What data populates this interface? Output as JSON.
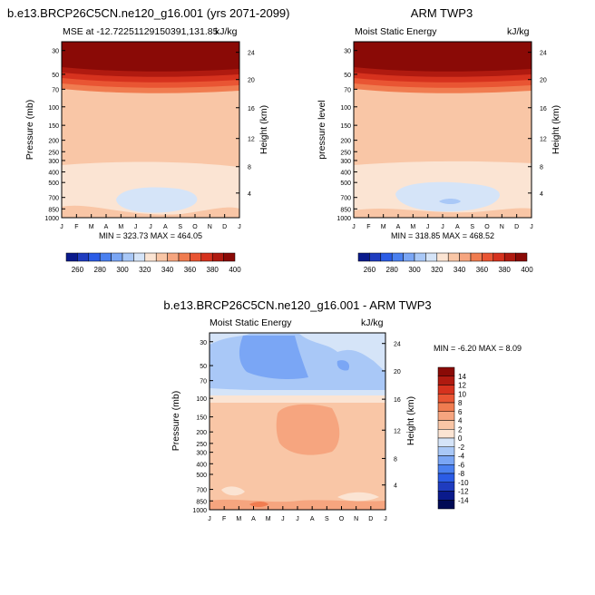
{
  "chart_data": [
    {
      "type": "heatmap",
      "title": "b.e13.BRCP26C5CN.ne120_g16.001 (yrs 2071-2099)",
      "subtitle_left": "MSE at -12.7225112915039​1,131.85",
      "units": "kJ/kg",
      "ylabel": "Pressure (mb)",
      "ylabel_right": "Height (km)",
      "months": [
        "J",
        "F",
        "M",
        "A",
        "M",
        "J",
        "J",
        "A",
        "S",
        "O",
        "N",
        "D",
        "J"
      ],
      "pressure_ticks": [
        "30",
        "50",
        "70",
        "100",
        "150",
        "200",
        "250",
        "300",
        "400",
        "500",
        "700",
        "850",
        "1000"
      ],
      "height_ticks": [
        "24",
        "20",
        "16",
        "12",
        "8",
        "4"
      ],
      "min_max": "MIN = 323.73  MAX = 464.05"
    },
    {
      "type": "heatmap",
      "title": "ARM TWP3",
      "subtitle_left": "Moist Static Energy",
      "units": "kJ/kg",
      "ylabel": "pressure level",
      "ylabel_right": "Height (km)",
      "months": [
        "J",
        "F",
        "M",
        "A",
        "M",
        "J",
        "J",
        "A",
        "S",
        "O",
        "N",
        "D",
        "J"
      ],
      "pressure_ticks": [
        "30",
        "50",
        "70",
        "100",
        "150",
        "200",
        "250",
        "300",
        "400",
        "500",
        "700",
        "850",
        "1000"
      ],
      "height_ticks": [
        "24",
        "20",
        "16",
        "12",
        "8",
        "4"
      ],
      "min_max": "MIN = 318.85  MAX = 468.52"
    },
    {
      "type": "heatmap",
      "title": "b.e13.BRCP26C5CN.ne120_g16.001 - ARM TWP3",
      "subtitle_left": "Moist Static Energy",
      "units": "kJ/kg",
      "ylabel": "Pressure (mb)",
      "ylabel_right": "Height (km)",
      "months": [
        "J",
        "F",
        "M",
        "A",
        "M",
        "J",
        "J",
        "A",
        "S",
        "O",
        "N",
        "D",
        "J"
      ],
      "pressure_ticks": [
        "30",
        "50",
        "70",
        "100",
        "150",
        "200",
        "250",
        "300",
        "400",
        "500",
        "700",
        "850",
        "1000"
      ],
      "height_ticks": [
        "24",
        "20",
        "16",
        "12",
        "8",
        "4"
      ],
      "min_max": "MIN = -6.20  MAX =  8.09"
    }
  ],
  "colorbar_top": {
    "labels": [
      "260",
      "280",
      "300",
      "320",
      "340",
      "360",
      "380",
      "400"
    ],
    "colors": [
      "#0a1a8c",
      "#1f3cbf",
      "#2b5ce6",
      "#4a80f0",
      "#7aa6f5",
      "#a9c8f7",
      "#d5e4f8",
      "#fbe4d3",
      "#f9c6a6",
      "#f6a57f",
      "#f07c50",
      "#e95533",
      "#d6321e",
      "#b01a10",
      "#8a0a06"
    ]
  },
  "colorbar_diff": {
    "labels": [
      "14",
      "12",
      "10",
      "8",
      "6",
      "4",
      "2",
      "0",
      "-2",
      "-4",
      "-6",
      "-8",
      "-10",
      "-12",
      "-14"
    ],
    "colors": [
      "#8a0a06",
      "#b01a10",
      "#d6321e",
      "#e95533",
      "#f07c50",
      "#f6a57f",
      "#f9c6a6",
      "#fbe4d3",
      "#d5e4f8",
      "#a9c8f7",
      "#7aa6f5",
      "#4a80f0",
      "#2b5ce6",
      "#1f3cbf",
      "#0a1a8c",
      "#000a55"
    ]
  }
}
